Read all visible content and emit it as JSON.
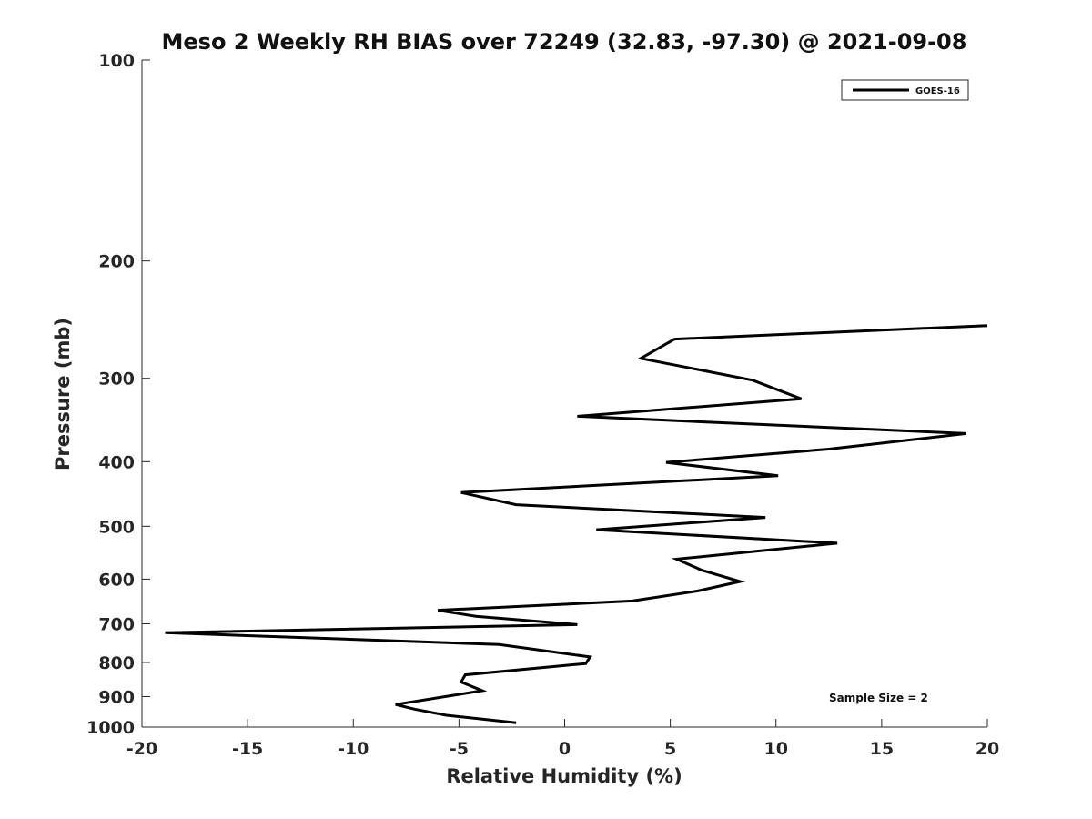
{
  "chart_data": {
    "type": "line",
    "title": "Meso 2 Weekly RH BIAS over 72249 (32.83, -97.30) @ 2021-09-08",
    "xlabel": "Relative Humidity (%)",
    "ylabel": "Pressure (mb)",
    "xlim": [
      -20,
      20
    ],
    "ylim": [
      100,
      1000
    ],
    "y_scale": "log",
    "y_reversed": true,
    "grid": false,
    "legend_position": "top-right",
    "x_ticks": [
      -20,
      -15,
      -10,
      -5,
      0,
      5,
      10,
      15,
      20
    ],
    "x_tick_labels": [
      "-20",
      "-15",
      "-10",
      "-5",
      "0",
      "5",
      "10",
      "15",
      "20"
    ],
    "y_ticks": [
      100,
      200,
      300,
      400,
      500,
      600,
      700,
      800,
      900,
      1000
    ],
    "y_tick_labels": [
      "100",
      "200",
      "300",
      "400",
      "500",
      "600",
      "700",
      "800",
      "900",
      "1000"
    ],
    "annotation": "Sample Size = 2",
    "series": [
      {
        "name": "GOES-16",
        "color": "#000000",
        "x": [
          20,
          5.2,
          3.6,
          8.9,
          11.2,
          0.6,
          19.0,
          12.5,
          4.8,
          10.1,
          -4.9,
          -2.3,
          9.5,
          1.5,
          12.9,
          5.3,
          6.5,
          8.3,
          6.3,
          3.2,
          -6.0,
          -4.2,
          0.6,
          -18.9,
          -3.1,
          1.2,
          1.0,
          -4.7,
          -4.9,
          -3.9,
          -8.0,
          -7.1,
          -5.6,
          -2.3
        ],
        "y": [
          250,
          262,
          280,
          302,
          322,
          342,
          363,
          383,
          401,
          420,
          445,
          464,
          485,
          506,
          530,
          560,
          582,
          605,
          625,
          647,
          668,
          682,
          702,
          722,
          752,
          785,
          803,
          835,
          856,
          882,
          925,
          940,
          960,
          985
        ]
      }
    ]
  }
}
